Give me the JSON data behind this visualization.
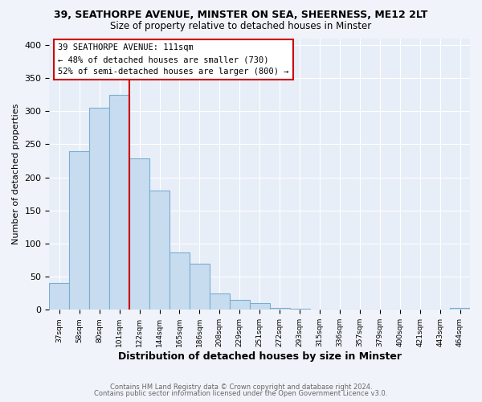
{
  "title_line1": "39, SEATHORPE AVENUE, MINSTER ON SEA, SHEERNESS, ME12 2LT",
  "title_line2": "Size of property relative to detached houses in Minster",
  "xlabel": "Distribution of detached houses by size in Minster",
  "ylabel": "Number of detached properties",
  "bar_labels": [
    "37sqm",
    "58sqm",
    "80sqm",
    "101sqm",
    "122sqm",
    "144sqm",
    "165sqm",
    "186sqm",
    "208sqm",
    "229sqm",
    "251sqm",
    "272sqm",
    "293sqm",
    "315sqm",
    "336sqm",
    "357sqm",
    "379sqm",
    "400sqm",
    "421sqm",
    "443sqm",
    "464sqm"
  ],
  "bar_values": [
    40,
    240,
    305,
    325,
    228,
    180,
    87,
    70,
    25,
    15,
    10,
    3,
    2,
    1,
    1,
    1,
    0,
    0,
    0,
    0,
    3
  ],
  "bar_color": "#c8dcf0",
  "bar_edge_color": "#7aaed0",
  "vline_x": 3.5,
  "vline_color": "#cc0000",
  "annotation_title": "39 SEATHORPE AVENUE: 111sqm",
  "annotation_line1": "← 48% of detached houses are smaller (730)",
  "annotation_line2": "52% of semi-detached houses are larger (800) →",
  "annotation_box_color": "#ffffff",
  "annotation_box_edge_color": "#cc0000",
  "ylim": [
    0,
    410
  ],
  "yticks": [
    0,
    50,
    100,
    150,
    200,
    250,
    300,
    350,
    400
  ],
  "footer_line1": "Contains HM Land Registry data © Crown copyright and database right 2024.",
  "footer_line2": "Contains public sector information licensed under the Open Government Licence v3.0.",
  "background_color": "#f0f4fa",
  "plot_bg_color": "#e8eef8",
  "grid_color": "#ffffff"
}
